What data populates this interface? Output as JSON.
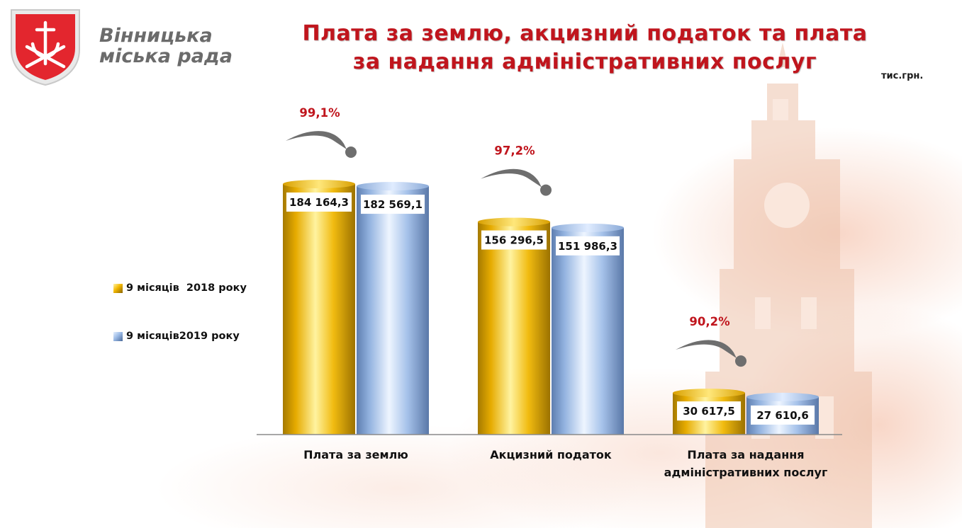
{
  "header": {
    "org_line1": "Вінницька",
    "org_line2": "міська рада",
    "title_line1": "Плата за землю, акцизний податок та плата",
    "title_line2": "за надання адміністративних послуг",
    "unit": "тис.грн."
  },
  "colors": {
    "series_2018": "#f3b800",
    "series_2019": "#9cbbe6",
    "accent": "#c0151d"
  },
  "chart_data": {
    "type": "bar",
    "title": "Плата за землю, акцизний податок та плата за надання адміністративних послуг",
    "ylabel": "тис.грн.",
    "ylim": [
      0,
      200000
    ],
    "grid": false,
    "legend_position": "left",
    "categories": [
      [
        "Плата за землю"
      ],
      [
        "Акцизний податок"
      ],
      [
        "Плата за надання",
        "адміністративних послуг"
      ]
    ],
    "series": [
      {
        "name": "9 місяців  2018 року",
        "values": [
          184164.3,
          156296.5,
          30617.5
        ],
        "labels": [
          "184 164,3",
          "156 296,5",
          "30 617,5"
        ]
      },
      {
        "name": "9 місяців2019 року",
        "values": [
          182569.1,
          151986.3,
          27610.6
        ],
        "labels": [
          "182 569,1",
          "151 986,3",
          "27 610,6"
        ]
      }
    ],
    "annotations": [
      "99,1%",
      "97,2%",
      "90,2%"
    ]
  }
}
